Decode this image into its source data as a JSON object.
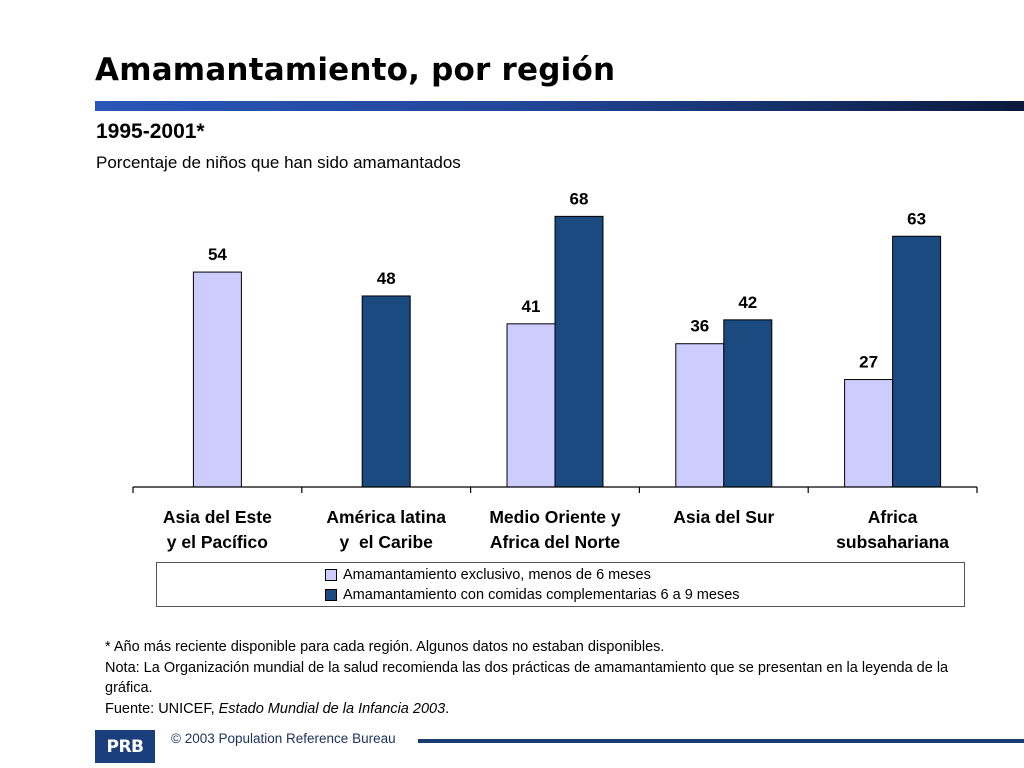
{
  "title": "Amamantamiento, por región",
  "subtitle": "1995-2001*",
  "caption": "Porcentaje de niños que han sido amamantados",
  "chart_data": {
    "type": "bar",
    "categories": [
      [
        "Asia del Este",
        "y el Pacífico"
      ],
      [
        "América latina",
        "y  el Caribe"
      ],
      [
        "Medio Oriente y",
        "Africa del Norte"
      ],
      [
        "Asia del Sur"
      ],
      [
        "Africa",
        "subsahariana"
      ]
    ],
    "series": [
      {
        "name": "Amamantamiento exclusivo, menos de 6 meses",
        "color": "#ccccff",
        "values": [
          54,
          null,
          41,
          36,
          27
        ],
        "labels": [
          "54",
          "",
          "41",
          "36",
          "27"
        ]
      },
      {
        "name": "Amamantamiento con comidas complementarias 6 a 9 meses",
        "color": "#1a4a80",
        "values": [
          null,
          48,
          68,
          42,
          63
        ],
        "labels": [
          "",
          "48",
          "68",
          "42",
          "63"
        ]
      }
    ],
    "ylim": [
      0,
      100
    ],
    "grid": false,
    "legend_position": "bottom"
  },
  "notes": {
    "line1": "* Año más reciente disponible para cada región. Algunos datos no estaban disponibles.",
    "line2": "Nota: La Organización mundial de la salud recomienda las dos prácticas de amamantamiento que se presentan en la leyenda de la gráfica.",
    "source_prefix": "Fuente: UNICEF, ",
    "source_title": "Estado Mundial de la Infancia 2003",
    "source_suffix": "."
  },
  "footer": {
    "logo_text": "PRB",
    "copyright": "© 2003 Population Reference Bureau"
  },
  "colors": {
    "series_light": "#ccccff",
    "series_dark": "#1a4a80",
    "title_rule": "#23479a"
  }
}
